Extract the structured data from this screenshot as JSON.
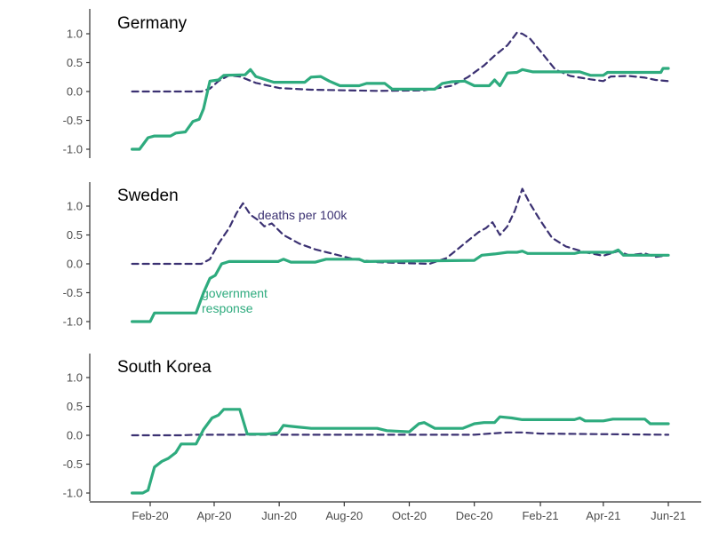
{
  "chart_data": {
    "type": "line",
    "x_tick_labels": [
      "Feb-20",
      "Apr-20",
      "Jun-20",
      "Aug-20",
      "Oct-20",
      "Dec-20",
      "Feb-21",
      "Apr-21",
      "Jun-21"
    ],
    "y_tick_labels": [
      "1.0",
      "0.5",
      "0.0",
      "-0.5",
      "-1.0"
    ],
    "ylim": [
      -1.05,
      1.4
    ],
    "grid": false,
    "colors": {
      "deaths": "#3b3172",
      "response": "#2eab7e",
      "axis": "#333333",
      "tick_text": "#4d4d4d"
    },
    "annotations": {
      "deaths": "deaths per 100k",
      "response_line1": "government",
      "response_line2": "response"
    },
    "panels": [
      {
        "title": "Germany",
        "series": [
          {
            "key": "deaths",
            "style": "dashed",
            "points": [
              [
                "2020-01-15",
                0
              ],
              [
                "2020-03-20",
                0
              ],
              [
                "2020-03-28",
                0.05
              ],
              [
                "2020-04-05",
                0.18
              ],
              [
                "2020-04-15",
                0.28
              ],
              [
                "2020-04-25",
                0.26
              ],
              [
                "2020-05-10",
                0.15
              ],
              [
                "2020-06-01",
                0.06
              ],
              [
                "2020-07-01",
                0.03
              ],
              [
                "2020-09-01",
                0.01
              ],
              [
                "2020-10-15",
                0.02
              ],
              [
                "2020-11-10",
                0.1
              ],
              [
                "2020-11-25",
                0.25
              ],
              [
                "2020-12-10",
                0.45
              ],
              [
                "2020-12-20",
                0.62
              ],
              [
                "2021-01-01",
                0.8
              ],
              [
                "2021-01-10",
                1.02
              ],
              [
                "2021-01-15",
                1.0
              ],
              [
                "2021-01-22",
                0.92
              ],
              [
                "2021-02-01",
                0.7
              ],
              [
                "2021-02-15",
                0.38
              ],
              [
                "2021-03-01",
                0.27
              ],
              [
                "2021-03-20",
                0.21
              ],
              [
                "2021-04-01",
                0.18
              ],
              [
                "2021-04-08",
                0.26
              ],
              [
                "2021-04-25",
                0.27
              ],
              [
                "2021-05-10",
                0.24
              ],
              [
                "2021-05-20",
                0.2
              ],
              [
                "2021-06-01",
                0.18
              ]
            ]
          },
          {
            "key": "response",
            "style": "solid",
            "points": [
              [
                "2020-01-15",
                -1.0
              ],
              [
                "2020-01-22",
                -1.0
              ],
              [
                "2020-01-30",
                -0.8
              ],
              [
                "2020-02-05",
                -0.77
              ],
              [
                "2020-02-20",
                -0.77
              ],
              [
                "2020-02-25",
                -0.72
              ],
              [
                "2020-03-05",
                -0.7
              ],
              [
                "2020-03-12",
                -0.52
              ],
              [
                "2020-03-18",
                -0.48
              ],
              [
                "2020-03-22",
                -0.3
              ],
              [
                "2020-03-28",
                0.18
              ],
              [
                "2020-04-05",
                0.2
              ],
              [
                "2020-04-10",
                0.28
              ],
              [
                "2020-04-30",
                0.29
              ],
              [
                "2020-05-05",
                0.38
              ],
              [
                "2020-05-10",
                0.26
              ],
              [
                "2020-05-20",
                0.2
              ],
              [
                "2020-05-27",
                0.16
              ],
              [
                "2020-06-25",
                0.16
              ],
              [
                "2020-07-01",
                0.25
              ],
              [
                "2020-07-10",
                0.26
              ],
              [
                "2020-07-18",
                0.18
              ],
              [
                "2020-07-28",
                0.1
              ],
              [
                "2020-08-15",
                0.1
              ],
              [
                "2020-08-22",
                0.14
              ],
              [
                "2020-09-08",
                0.14
              ],
              [
                "2020-09-15",
                0.04
              ],
              [
                "2020-10-25",
                0.04
              ],
              [
                "2020-11-01",
                0.14
              ],
              [
                "2020-11-10",
                0.17
              ],
              [
                "2020-11-22",
                0.18
              ],
              [
                "2020-12-01",
                0.1
              ],
              [
                "2020-12-15",
                0.1
              ],
              [
                "2020-12-20",
                0.2
              ],
              [
                "2020-12-25",
                0.1
              ],
              [
                "2021-01-01",
                0.32
              ],
              [
                "2021-01-10",
                0.33
              ],
              [
                "2021-01-15",
                0.38
              ],
              [
                "2021-01-25",
                0.34
              ],
              [
                "2021-03-10",
                0.34
              ],
              [
                "2021-03-20",
                0.28
              ],
              [
                "2021-04-01",
                0.28
              ],
              [
                "2021-04-05",
                0.33
              ],
              [
                "2021-05-25",
                0.33
              ],
              [
                "2021-05-27",
                0.4
              ],
              [
                "2021-06-01",
                0.4
              ]
            ]
          }
        ]
      },
      {
        "title": "Sweden",
        "series": [
          {
            "key": "deaths",
            "style": "dashed",
            "points": [
              [
                "2020-01-15",
                0
              ],
              [
                "2020-03-20",
                0
              ],
              [
                "2020-03-28",
                0.08
              ],
              [
                "2020-04-05",
                0.35
              ],
              [
                "2020-04-15",
                0.62
              ],
              [
                "2020-04-22",
                0.88
              ],
              [
                "2020-04-28",
                1.05
              ],
              [
                "2020-05-05",
                0.85
              ],
              [
                "2020-05-12",
                0.76
              ],
              [
                "2020-05-18",
                0.65
              ],
              [
                "2020-05-25",
                0.7
              ],
              [
                "2020-06-05",
                0.5
              ],
              [
                "2020-06-20",
                0.35
              ],
              [
                "2020-07-05",
                0.25
              ],
              [
                "2020-07-20",
                0.18
              ],
              [
                "2020-08-10",
                0.08
              ],
              [
                "2020-09-01",
                0.03
              ],
              [
                "2020-10-01",
                0.01
              ],
              [
                "2020-10-20",
                0.0
              ],
              [
                "2020-11-05",
                0.1
              ],
              [
                "2020-11-15",
                0.25
              ],
              [
                "2020-11-25",
                0.4
              ],
              [
                "2020-12-05",
                0.55
              ],
              [
                "2020-12-12",
                0.62
              ],
              [
                "2020-12-18",
                0.72
              ],
              [
                "2020-12-25",
                0.5
              ],
              [
                "2021-01-01",
                0.65
              ],
              [
                "2021-01-08",
                0.92
              ],
              [
                "2021-01-15",
                1.3
              ],
              [
                "2021-01-22",
                1.05
              ],
              [
                "2021-02-01",
                0.75
              ],
              [
                "2021-02-12",
                0.45
              ],
              [
                "2021-02-25",
                0.3
              ],
              [
                "2021-03-15",
                0.2
              ],
              [
                "2021-04-01",
                0.14
              ],
              [
                "2021-04-15",
                0.22
              ],
              [
                "2021-04-25",
                0.15
              ],
              [
                "2021-05-10",
                0.18
              ],
              [
                "2021-05-20",
                0.12
              ],
              [
                "2021-06-01",
                0.15
              ]
            ]
          },
          {
            "key": "response",
            "style": "solid",
            "points": [
              [
                "2020-01-15",
                -1.0
              ],
              [
                "2020-02-01",
                -1.0
              ],
              [
                "2020-02-05",
                -0.85
              ],
              [
                "2020-03-15",
                -0.85
              ],
              [
                "2020-03-22",
                -0.5
              ],
              [
                "2020-03-28",
                -0.25
              ],
              [
                "2020-04-02",
                -0.2
              ],
              [
                "2020-04-08",
                0.0
              ],
              [
                "2020-04-15",
                0.04
              ],
              [
                "2020-05-31",
                0.04
              ],
              [
                "2020-06-05",
                0.08
              ],
              [
                "2020-06-12",
                0.03
              ],
              [
                "2020-07-05",
                0.03
              ],
              [
                "2020-07-15",
                0.08
              ],
              [
                "2020-08-15",
                0.08
              ],
              [
                "2020-08-20",
                0.04
              ],
              [
                "2020-12-01",
                0.06
              ],
              [
                "2020-12-08",
                0.15
              ],
              [
                "2020-12-20",
                0.17
              ],
              [
                "2021-01-01",
                0.2
              ],
              [
                "2021-01-10",
                0.2
              ],
              [
                "2021-01-15",
                0.22
              ],
              [
                "2021-01-20",
                0.18
              ],
              [
                "2021-03-05",
                0.18
              ],
              [
                "2021-03-10",
                0.2
              ],
              [
                "2021-04-10",
                0.2
              ],
              [
                "2021-04-15",
                0.24
              ],
              [
                "2021-04-20",
                0.15
              ],
              [
                "2021-05-25",
                0.15
              ],
              [
                "2021-06-01",
                0.15
              ]
            ]
          }
        ]
      },
      {
        "title": "South Korea",
        "series": [
          {
            "key": "deaths",
            "style": "dashed",
            "points": [
              [
                "2020-01-15",
                0
              ],
              [
                "2020-03-01",
                0
              ],
              [
                "2020-03-15",
                0.01
              ],
              [
                "2020-04-01",
                0.01
              ],
              [
                "2020-12-01",
                0.01
              ],
              [
                "2020-12-15",
                0.03
              ],
              [
                "2021-01-01",
                0.05
              ],
              [
                "2021-01-15",
                0.05
              ],
              [
                "2021-02-01",
                0.03
              ],
              [
                "2021-06-01",
                0.01
              ]
            ]
          },
          {
            "key": "response",
            "style": "solid",
            "points": [
              [
                "2020-01-15",
                -1.0
              ],
              [
                "2020-01-25",
                -1.0
              ],
              [
                "2020-01-30",
                -0.95
              ],
              [
                "2020-02-05",
                -0.55
              ],
              [
                "2020-02-12",
                -0.45
              ],
              [
                "2020-02-18",
                -0.4
              ],
              [
                "2020-02-25",
                -0.3
              ],
              [
                "2020-03-01",
                -0.15
              ],
              [
                "2020-03-15",
                -0.15
              ],
              [
                "2020-03-22",
                0.1
              ],
              [
                "2020-03-30",
                0.3
              ],
              [
                "2020-04-05",
                0.35
              ],
              [
                "2020-04-10",
                0.45
              ],
              [
                "2020-04-25",
                0.45
              ],
              [
                "2020-05-02",
                0.02
              ],
              [
                "2020-05-20",
                0.02
              ],
              [
                "2020-05-31",
                0.04
              ],
              [
                "2020-06-05",
                0.17
              ],
              [
                "2020-06-10",
                0.16
              ],
              [
                "2020-06-20",
                0.14
              ],
              [
                "2020-07-01",
                0.12
              ],
              [
                "2020-09-01",
                0.12
              ],
              [
                "2020-09-10",
                0.08
              ],
              [
                "2020-10-01",
                0.06
              ],
              [
                "2020-10-10",
                0.2
              ],
              [
                "2020-10-15",
                0.22
              ],
              [
                "2020-10-25",
                0.12
              ],
              [
                "2020-11-20",
                0.12
              ],
              [
                "2020-12-01",
                0.2
              ],
              [
                "2020-12-10",
                0.22
              ],
              [
                "2020-12-20",
                0.22
              ],
              [
                "2020-12-25",
                0.32
              ],
              [
                "2021-01-05",
                0.3
              ],
              [
                "2021-01-15",
                0.27
              ],
              [
                "2021-03-05",
                0.27
              ],
              [
                "2021-03-10",
                0.3
              ],
              [
                "2021-03-15",
                0.25
              ],
              [
                "2021-04-01",
                0.25
              ],
              [
                "2021-04-10",
                0.28
              ],
              [
                "2021-05-10",
                0.28
              ],
              [
                "2021-05-15",
                0.2
              ],
              [
                "2021-06-01",
                0.2
              ]
            ]
          }
        ]
      }
    ]
  }
}
